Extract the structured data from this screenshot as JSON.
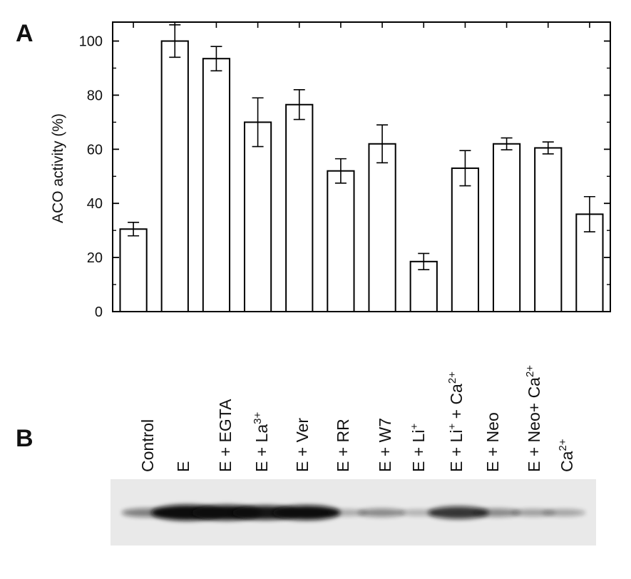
{
  "panels": {
    "a": "A",
    "b": "B"
  },
  "chart_data": {
    "type": "bar",
    "ylabel": "ACO activity (%)",
    "ylim": [
      0,
      107
    ],
    "yticks": [
      0,
      20,
      40,
      60,
      80,
      100
    ],
    "categories": [
      "Control",
      "E",
      "E + EGTA",
      "E + La3+",
      "E + Ver",
      "E + RR",
      "E + W7",
      "E + Li+",
      "E + Li+ + Ca2+",
      "E + Neo",
      "E + Neo+ Ca2+",
      "Ca2+"
    ],
    "values": [
      30.5,
      100,
      93.5,
      70,
      76.5,
      52,
      62,
      18.5,
      53,
      62,
      60.5,
      36
    ],
    "errors": [
      2.5,
      6,
      4.5,
      9,
      5.5,
      4.5,
      7,
      3,
      6.5,
      2.2,
      2.2,
      6.5
    ],
    "bar_fill": "#ffffff",
    "bar_stroke": "#000000",
    "grid": false
  },
  "blot": {
    "lanes": [
      {
        "base": "Control",
        "segments": []
      },
      {
        "base": "E",
        "segments": []
      },
      {
        "base": "E + EGTA",
        "segments": []
      },
      {
        "base": "E + La",
        "segments": [
          {
            "text": "3+",
            "sup": true
          }
        ]
      },
      {
        "base": "E + Ver",
        "segments": []
      },
      {
        "base": "E + RR",
        "segments": []
      },
      {
        "base": "E + W7",
        "segments": []
      },
      {
        "base": "E + Li",
        "segments": [
          {
            "text": "+",
            "sup": true
          }
        ]
      },
      {
        "base": "E + Li",
        "segments": [
          {
            "text": "+",
            "sup": true
          },
          {
            "text": " + Ca",
            "sup": false
          },
          {
            "text": "2+",
            "sup": true
          }
        ]
      },
      {
        "base": "E + Neo",
        "segments": []
      },
      {
        "base": "E + Neo+ Ca",
        "segments": [
          {
            "text": "2+",
            "sup": true
          }
        ]
      },
      {
        "base": "Ca",
        "segments": [
          {
            "text": "2+",
            "sup": true
          }
        ]
      }
    ],
    "band_intensity": [
      0.35,
      1.0,
      0.95,
      0.85,
      0.9,
      0.15,
      0.3,
      0.12,
      0.7,
      0.3,
      0.2,
      0.18
    ],
    "background": "#e9e9e9",
    "band_color": "#0a0a0a"
  }
}
